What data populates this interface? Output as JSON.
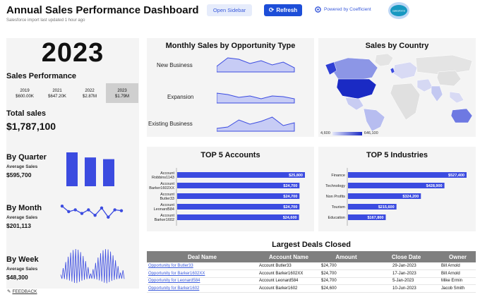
{
  "header": {
    "title": "Annual Sales Performance Dashboard",
    "subtitle": "Salesforce import last updated 1 hour ago",
    "open_sidebar": "Open Sidebar",
    "refresh": "Refresh",
    "powered_by": "Powered by Coefficient",
    "salesforce_logo_text": "salesforce"
  },
  "left": {
    "year": "2023",
    "sales_performance": "Sales Performance",
    "years": [
      {
        "label": "2019",
        "value": "$600.00K"
      },
      {
        "label": "2021",
        "value": "$647.20K"
      },
      {
        "label": "2022",
        "value": "$2.87M"
      },
      {
        "label": "2023",
        "value": "$1.79M"
      }
    ],
    "active_year": "2023",
    "total_sales_label": "Total sales",
    "total_sales_value": "$1,787,100",
    "by_quarter": {
      "title": "By Quarter",
      "avg_label": "Average Sales",
      "avg_value": "$595,700",
      "bars": [
        1.0,
        0.85,
        0.8
      ]
    },
    "by_month": {
      "title": "By Month",
      "avg_label": "Average Sales",
      "avg_value": "$201,113",
      "points": [
        0.8,
        0.5,
        0.6,
        0.4,
        0.6,
        0.3,
        0.7,
        0.2,
        0.6,
        0.55
      ]
    },
    "by_week": {
      "title": "By Week",
      "avg_label": "Average Sales",
      "avg_value": "$48,300"
    }
  },
  "monthly_sales": {
    "title": "Monthly Sales by Opportunity Type",
    "rows": [
      {
        "label": "New Business",
        "values": [
          0.4,
          1.0,
          0.9,
          0.6,
          0.8,
          0.5,
          0.7,
          0.3
        ]
      },
      {
        "label": "Expansion",
        "values": [
          0.7,
          0.6,
          0.4,
          0.5,
          0.3,
          0.5,
          0.45,
          0.3
        ]
      },
      {
        "label": "Existing Business",
        "values": [
          0.2,
          0.3,
          0.8,
          0.5,
          0.7,
          1.0,
          0.4,
          0.6
        ]
      }
    ]
  },
  "map": {
    "title": "Sales by Country",
    "legend_min": "4,600",
    "legend_max": "646,100"
  },
  "top_accounts": {
    "title": "TOP 5 Accounts",
    "chart_data": {
      "type": "bar",
      "categories": [
        "Account Robbins1143",
        "Account Barker1602XX",
        "Account Butler33",
        "Account Leonard584",
        "Account Barker1602"
      ],
      "values": [
        25800,
        24700,
        24700,
        24700,
        24600
      ],
      "data_labels": [
        "$25,800",
        "$24,700",
        "$24,700",
        "$24,700",
        "$24,600"
      ],
      "xlim": [
        0,
        25800
      ],
      "color": "#3b4be0"
    }
  },
  "top_industries": {
    "title": "TOP 5 Industries",
    "chart_data": {
      "type": "bar",
      "categories": [
        "Finance",
        "Technology",
        "Non Profits",
        "Tourism",
        "Education"
      ],
      "values": [
        527400,
        428900,
        324200,
        215600,
        167800
      ],
      "data_labels": [
        "$527,400",
        "$428,900",
        "$324,200",
        "$215,600",
        "$167,800"
      ],
      "xlim": [
        0,
        527400
      ],
      "color": "#3b4be0"
    }
  },
  "deals": {
    "title": "Largest Deals Closed",
    "columns": [
      "Deal Name",
      "Account Name",
      "Amount",
      "Close Date",
      "Owner"
    ],
    "rows": [
      [
        "Opportunity for Butler33",
        "Account  Butler33",
        "$24,700",
        "29-Jan-2023",
        "Bill Arnold"
      ],
      [
        "Opportunity for Barker1602XX",
        "Account  Barker1602XX",
        "$24,700",
        "17-Jan-2023",
        "Bill Arnold"
      ],
      [
        "Opportunity for Leonard584",
        "Account  Leonard584",
        "$24,700",
        "5-Jan-2023",
        "Mike Ermin"
      ],
      [
        "Opportunity for Barker1602",
        "Account  Barker1602",
        "$24,600",
        "10-Jun-2023",
        "Jacob Smith"
      ]
    ]
  },
  "feedback": "FEEDBACK",
  "colors": {
    "accent": "#1d4ed8",
    "bar": "#3b4be0",
    "panel": "#f4f4f4"
  }
}
